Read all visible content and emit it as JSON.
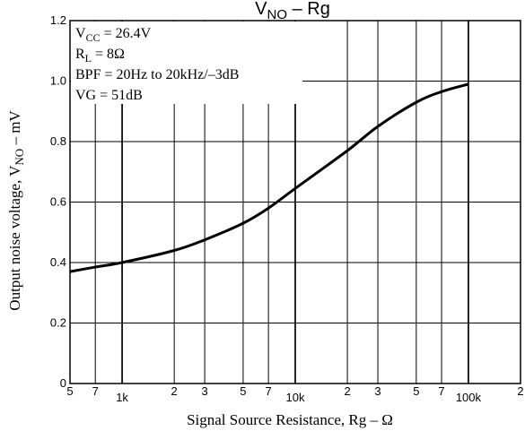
{
  "chart_data": {
    "type": "line",
    "title": "V",
    "title_sub": "NO",
    "title_rest": " – Rg",
    "xlabel": "Signal Source Resistance, Rg – Ω",
    "ylabel": "Output noise voltage, V",
    "ylabel_sub": "NO",
    "ylabel_rest": " – mV",
    "x_scale": "log",
    "xlim": [
      500,
      200000
    ],
    "ylim": [
      0,
      1.2
    ],
    "grid": true,
    "x_tick_labels": [
      {
        "value": 500,
        "label": "5"
      },
      {
        "value": 700,
        "label": "7"
      },
      {
        "value": 1000,
        "label": "1k"
      },
      {
        "value": 2000,
        "label": "2"
      },
      {
        "value": 3000,
        "label": "3"
      },
      {
        "value": 5000,
        "label": "5"
      },
      {
        "value": 7000,
        "label": "7"
      },
      {
        "value": 10000,
        "label": "10k"
      },
      {
        "value": 20000,
        "label": "2"
      },
      {
        "value": 30000,
        "label": "3"
      },
      {
        "value": 50000,
        "label": "5"
      },
      {
        "value": 70000,
        "label": "7"
      },
      {
        "value": 100000,
        "label": "100k"
      },
      {
        "value": 200000,
        "label": "2"
      }
    ],
    "y_ticks": [
      {
        "value": 0,
        "label": "0"
      },
      {
        "value": 0.2,
        "label": "0.2"
      },
      {
        "value": 0.4,
        "label": "0.4"
      },
      {
        "value": 0.6,
        "label": "0.6"
      },
      {
        "value": 0.8,
        "label": "0.8"
      },
      {
        "value": 1.0,
        "label": "1.0"
      },
      {
        "value": 1.2,
        "label": "1.2"
      }
    ],
    "x_grid_values": [
      500,
      700,
      1000,
      2000,
      3000,
      5000,
      7000,
      10000,
      20000,
      30000,
      50000,
      70000,
      100000,
      200000
    ],
    "major_x_grid_values": [
      1000,
      10000,
      100000
    ],
    "series": [
      {
        "color": "#000000",
        "points": [
          {
            "x": 500,
            "y": 0.37
          },
          {
            "x": 700,
            "y": 0.385
          },
          {
            "x": 1000,
            "y": 0.4
          },
          {
            "x": 2000,
            "y": 0.44
          },
          {
            "x": 3000,
            "y": 0.475
          },
          {
            "x": 5000,
            "y": 0.53
          },
          {
            "x": 7000,
            "y": 0.58
          },
          {
            "x": 10000,
            "y": 0.645
          },
          {
            "x": 20000,
            "y": 0.77
          },
          {
            "x": 30000,
            "y": 0.85
          },
          {
            "x": 50000,
            "y": 0.93
          },
          {
            "x": 70000,
            "y": 0.965
          },
          {
            "x": 100000,
            "y": 0.99
          }
        ]
      }
    ],
    "conditions": [
      {
        "main": "V",
        "sub": "CC",
        "rest": " = 26.4V"
      },
      {
        "main": "R",
        "sub": "L",
        "rest": " = 8Ω"
      },
      {
        "main": "BPF = 20Hz to 20kHz/–3dB",
        "sub": "",
        "rest": ""
      },
      {
        "main": "VG = 51dB",
        "sub": "",
        "rest": ""
      }
    ]
  }
}
